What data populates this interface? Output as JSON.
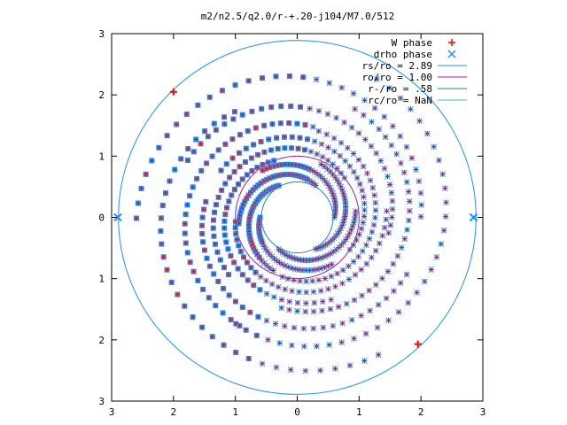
{
  "chart_data": {
    "type": "scatter",
    "title": "m2/n2.5/q2.0/r-+.20-j104/M7.0/512",
    "xlim": [
      -3,
      3
    ],
    "ylim": [
      -3,
      3
    ],
    "x_ticks": [
      "3",
      "2",
      "1",
      "0",
      "1",
      "2",
      "3"
    ],
    "y_ticks": [
      "3",
      "2",
      "1",
      "0",
      "1",
      "2",
      "3"
    ],
    "grid": false,
    "legend_position": "top-right",
    "colors": {
      "w_phase": "#ff0000",
      "drho_phase": "#1e90ff",
      "rs_circle": "#1e90ff",
      "ro_circle": "#a020a0",
      "rminus_circle": "#2080c0",
      "rc_circle": "#40c0c0"
    },
    "legend": [
      {
        "label": "W phase",
        "marker": "+",
        "color": "#ff0000"
      },
      {
        "label": "drho phase",
        "marker": "x",
        "color": "#1e90ff"
      },
      {
        "label": "rs/ro = 2.89",
        "marker": "line",
        "color": "#1e90ff"
      },
      {
        "label": "ro/ro = 1.00",
        "marker": "line",
        "color": "#a020a0"
      },
      {
        "label": "r-/ro = .58",
        "marker": "line",
        "color": "#2080c0"
      },
      {
        "label": "rc/ro = NaN",
        "marker": "line",
        "color": "#40c0c0"
      }
    ],
    "circles": [
      {
        "name": "rs/ro",
        "radius": 2.89
      },
      {
        "name": "ro/ro",
        "radius": 1.0
      },
      {
        "name": "r-/ro",
        "radius": 0.58
      }
    ],
    "marker_points": [
      {
        "series": "W phase",
        "x": -2.0,
        "y": 2.05
      },
      {
        "series": "W phase",
        "x": 1.95,
        "y": -2.07
      },
      {
        "series": "drho phase",
        "x": -2.9,
        "y": 0.0
      },
      {
        "series": "drho phase",
        "x": 2.85,
        "y": 0.0
      }
    ],
    "point_cloud_description_free": true,
    "spiral_families": [
      {
        "arms": 6,
        "r_start": 0.6,
        "r_end": 0.95,
        "turn": 0.35
      },
      {
        "arms": 5,
        "r_start": 1.0,
        "r_end": 1.45,
        "turn": 0.5
      },
      {
        "arms": 4,
        "r_start": 1.5,
        "r_end": 2.0,
        "turn": 0.45
      },
      {
        "arms": 3,
        "r_start": 2.0,
        "r_end": 2.6,
        "turn": 0.5
      }
    ]
  }
}
